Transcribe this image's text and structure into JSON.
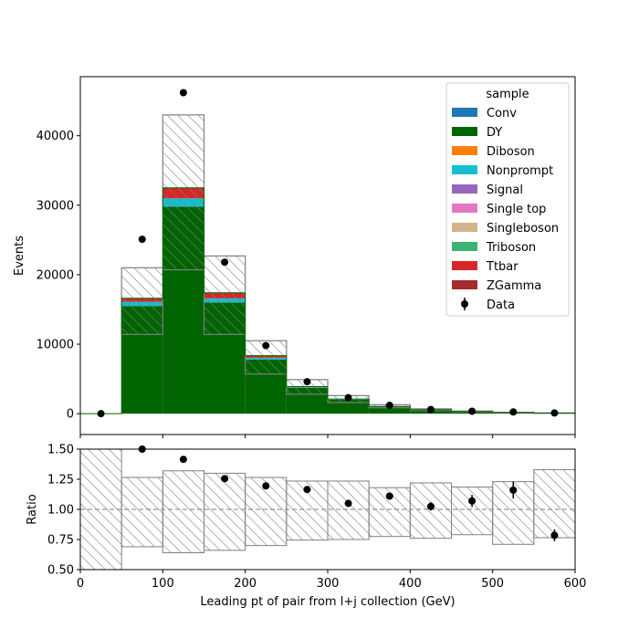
{
  "chart_data": [
    {
      "type": "bar",
      "subtype": "stacked-histogram",
      "x_edges": [
        0,
        50,
        100,
        150,
        200,
        250,
        300,
        350,
        400,
        450,
        500,
        550,
        600
      ],
      "ylabel": "Events",
      "xlim": [
        0,
        600
      ],
      "ylim": [
        -3000,
        48500
      ],
      "yticks": [
        0,
        10000,
        20000,
        30000,
        40000
      ],
      "legend_title": "sample",
      "legend_position": "top-right",
      "series": [
        {
          "name": "Conv",
          "color": "#1f77b4",
          "values": [
            0,
            0,
            0,
            0,
            0,
            0,
            0,
            0,
            0,
            0,
            0,
            0
          ]
        },
        {
          "name": "DY",
          "color": "#006400",
          "values": [
            0,
            15500,
            29800,
            16000,
            7800,
            3700,
            2000,
            1000,
            550,
            300,
            150,
            80
          ]
        },
        {
          "name": "Diboson",
          "color": "#ff7f0e",
          "values": [
            0,
            0,
            0,
            0,
            0,
            0,
            0,
            0,
            0,
            0,
            0,
            0
          ]
        },
        {
          "name": "Nonprompt",
          "color": "#17becf",
          "values": [
            0,
            600,
            1200,
            600,
            250,
            100,
            50,
            20,
            10,
            5,
            3,
            2
          ]
        },
        {
          "name": "Signal",
          "color": "#9467bd",
          "values": [
            0,
            0,
            0,
            0,
            0,
            0,
            0,
            0,
            0,
            0,
            0,
            0
          ]
        },
        {
          "name": "Single top",
          "color": "#e377c2",
          "values": [
            0,
            0,
            0,
            0,
            0,
            0,
            0,
            0,
            0,
            0,
            0,
            0
          ]
        },
        {
          "name": "Singleboson",
          "color": "#d2b48c",
          "values": [
            0,
            0,
            0,
            0,
            0,
            0,
            0,
            0,
            0,
            0,
            0,
            0
          ]
        },
        {
          "name": "Triboson",
          "color": "#3cb371",
          "values": [
            0,
            0,
            0,
            0,
            0,
            0,
            0,
            0,
            0,
            0,
            0,
            0
          ]
        },
        {
          "name": "Ttbar",
          "color": "#d62728",
          "values": [
            0,
            500,
            1500,
            800,
            300,
            100,
            50,
            20,
            10,
            5,
            3,
            2
          ]
        },
        {
          "name": "ZGamma",
          "color": "#a52a2a",
          "values": [
            0,
            0,
            0,
            0,
            0,
            0,
            0,
            0,
            0,
            0,
            0,
            0
          ]
        }
      ],
      "uncertainty_band": {
        "low": [
          0,
          11400,
          20700,
          11400,
          5700,
          2800,
          1600,
          850,
          450,
          250,
          120,
          60
        ],
        "high": [
          0,
          21000,
          43000,
          22700,
          10500,
          4900,
          2600,
          1300,
          700,
          380,
          200,
          110
        ]
      },
      "data_points": {
        "name": "Data",
        "color": "#000000",
        "x": [
          25,
          75,
          125,
          175,
          225,
          275,
          325,
          375,
          425,
          475,
          525,
          575
        ],
        "y": [
          0,
          25100,
          46200,
          21800,
          9800,
          4600,
          2300,
          1200,
          600,
          350,
          250,
          100
        ]
      }
    },
    {
      "type": "scatter",
      "subtype": "ratio-panel",
      "ylabel": "Ratio",
      "xlabel": "Leading pt of pair from l+j collection (GeV)",
      "xlim": [
        0,
        600
      ],
      "ylim": [
        0.5,
        1.5
      ],
      "xticks": [
        0,
        100,
        200,
        300,
        400,
        500,
        600
      ],
      "yticks": [
        0.5,
        0.75,
        1.0,
        1.25,
        1.5
      ],
      "ytick_labels": [
        "0.50",
        "0.75",
        "1.00",
        "1.25",
        "1.50"
      ],
      "reference_line": 1.0,
      "x_edges": [
        0,
        50,
        100,
        150,
        200,
        250,
        300,
        350,
        400,
        450,
        500,
        550,
        600
      ],
      "band_low": [
        0.0,
        0.69,
        0.64,
        0.66,
        0.7,
        0.745,
        0.75,
        0.775,
        0.76,
        0.79,
        0.71,
        0.765
      ],
      "band_high": [
        2.0,
        1.265,
        1.32,
        1.3,
        1.265,
        1.235,
        1.235,
        1.18,
        1.22,
        1.185,
        1.23,
        1.33
      ],
      "points": {
        "x": [
          75,
          125,
          175,
          225,
          275,
          325,
          375,
          425,
          475,
          525,
          575
        ],
        "y": [
          1.5,
          1.415,
          1.255,
          1.195,
          1.165,
          1.05,
          1.11,
          1.025,
          1.07,
          1.16,
          0.785
        ],
        "err": [
          0.005,
          0.005,
          0.007,
          0.01,
          0.015,
          0.02,
          0.025,
          0.035,
          0.05,
          0.07,
          0.05
        ]
      }
    }
  ]
}
